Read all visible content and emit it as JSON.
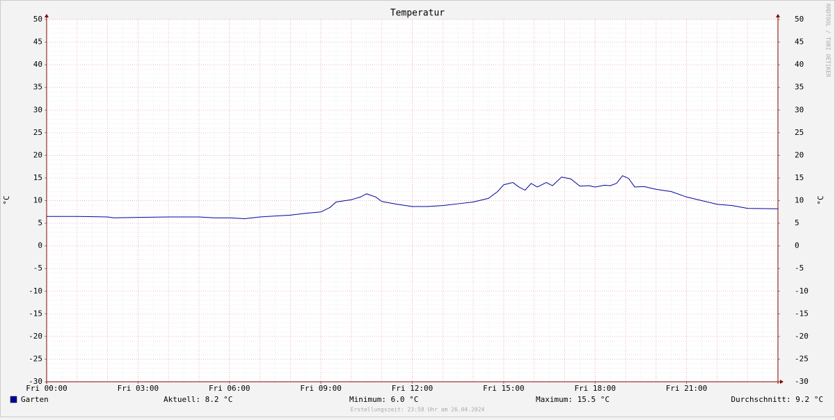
{
  "chart_data": {
    "type": "line",
    "title": "Temperatur",
    "y_label": "°C",
    "x": [
      0,
      1,
      2,
      2.2,
      3,
      4,
      5,
      5.5,
      6,
      6.5,
      7,
      8,
      8.5,
      9,
      9.3,
      9.5,
      10,
      10.3,
      10.5,
      10.8,
      11,
      11.5,
      12,
      12.5,
      13,
      13.5,
      14,
      14.5,
      14.8,
      15,
      15.3,
      15.5,
      15.7,
      15.9,
      16.1,
      16.4,
      16.6,
      16.9,
      17.2,
      17.5,
      17.8,
      18,
      18.3,
      18.5,
      18.7,
      18.9,
      19.1,
      19.3,
      19.6,
      20,
      20.5,
      21,
      21.5,
      22,
      22.5,
      23,
      24
    ],
    "series": [
      {
        "name": "Garten",
        "color": "#0000a0",
        "values": [
          6.5,
          6.5,
          6.4,
          6.2,
          6.3,
          6.4,
          6.4,
          6.2,
          6.2,
          6.0,
          6.4,
          6.8,
          7.2,
          7.5,
          8.5,
          9.7,
          10.2,
          10.8,
          11.5,
          10.8,
          9.8,
          9.2,
          8.7,
          8.7,
          8.9,
          9.3,
          9.7,
          10.5,
          12.0,
          13.5,
          14.0,
          13.0,
          12.3,
          13.8,
          13.0,
          14.0,
          13.3,
          15.2,
          14.8,
          13.2,
          13.3,
          13.0,
          13.4,
          13.3,
          13.8,
          15.5,
          14.9,
          13.0,
          13.1,
          12.5,
          12.0,
          10.8,
          10.0,
          9.2,
          8.9,
          8.3,
          8.2
        ]
      }
    ],
    "xlim": [
      0,
      24
    ],
    "xticks": [
      {
        "value": 0,
        "label": "Fri 00:00"
      },
      {
        "value": 3,
        "label": "Fri 03:00"
      },
      {
        "value": 6,
        "label": "Fri 06:00"
      },
      {
        "value": 9,
        "label": "Fri 09:00"
      },
      {
        "value": 12,
        "label": "Fri 12:00"
      },
      {
        "value": 15,
        "label": "Fri 15:00"
      },
      {
        "value": 18,
        "label": "Fri 18:00"
      },
      {
        "value": 21,
        "label": "Fri 21:00"
      }
    ],
    "ylim": [
      -30,
      50
    ],
    "yticks": [
      -30,
      -25,
      -20,
      -15,
      -10,
      -5,
      0,
      5,
      10,
      15,
      20,
      25,
      30,
      35,
      40,
      45,
      50
    ],
    "grid": true,
    "stats": [
      "Aktuell: 8.2 °C",
      "Minimum: 6.0 °C",
      "Maximum: 15.5 °C",
      "Durchschnitt: 9.2 °C"
    ],
    "footer": "Erstellungszeit: 23:58 Uhr am 26.04.2024",
    "watermark": "RRDTOOL / TOBI OETIKER"
  }
}
